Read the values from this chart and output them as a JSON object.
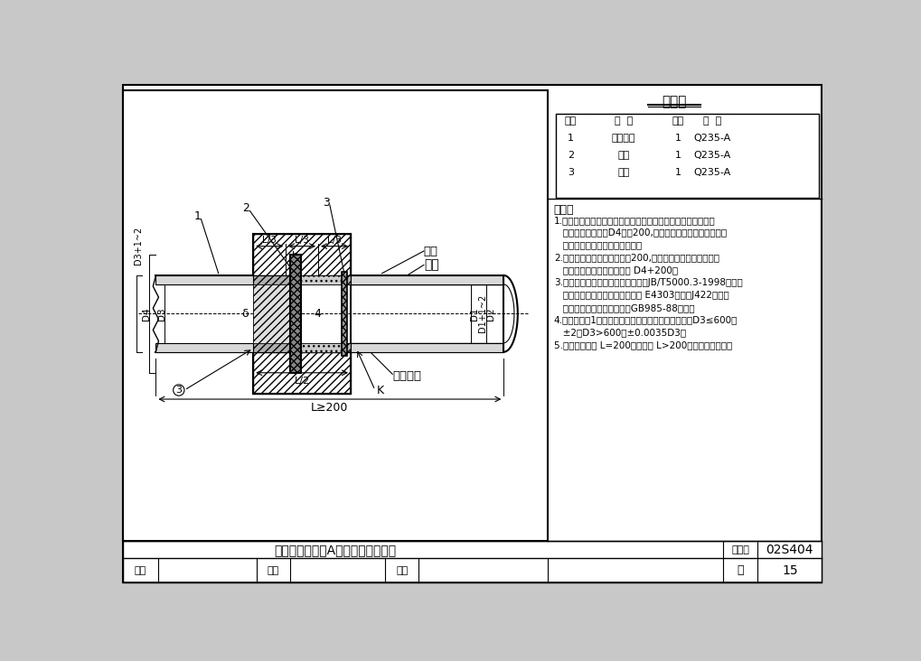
{
  "title_table": "材料表",
  "table_headers": [
    "序号",
    "名  称",
    "数量",
    "材  料"
  ],
  "table_rows": [
    [
      "1",
      "钢制套管",
      "1",
      "Q235-A"
    ],
    [
      "2",
      "翼环",
      "1",
      "Q235-A"
    ],
    [
      "3",
      "挡圈",
      "1",
      "Q235-A"
    ]
  ],
  "notes_title": "说明：",
  "notes": [
    "1.套管穿墙处如遇非混凝土墙壁时，应改用混凝土墙壁，其浇注",
    "   围应比翼环直径（D4）大200,而且必须将套管一次浇固于墙",
    "   内。套管内的填料应紧密捣实。",
    "2.穿管处混凝土墙厚应不小于200,否则应使墙壁一边或两边加",
    "   厚。加厚部分的直径至少为 D4+200。",
    "3.焊接结构尺寸公差与形位公差按照JB/T5000.3-1998执行。",
    "   焊接采用手工电弧焊，焊条型号 E4303，牌号J422。焊缝",
    "   坡口的基本形式与尺寸按照GB985-88执行。",
    "4.当套管（件1）采用卷制成型时，周长允许偏差为：D3≤600，",
    "   ±2，D3>600，±0.0035D3。",
    "5.套管的重量以 L=200计算，当 L>200时，应另行计算。"
  ],
  "bottom_title": "刚性防水套管（A型）安装图（一）",
  "atlas_label": "图集号",
  "atlas_num": "02S404",
  "page_label": "页",
  "page_num": "15",
  "label_youma": "油麻",
  "label_gangguan": "钢管",
  "label_shimianzhuini": "石棉水泥",
  "dim_b": "b",
  "dim_L3": "L/3",
  "dim_L2": "L/2",
  "dim_Lge200": "L≥200",
  "dim_D4": "D4",
  "dim_D3": "D3",
  "dim_D3p": "D3+1~2",
  "dim_D1": "D1",
  "dim_D1p": "D1+1~2",
  "dim_D2": "D2",
  "dim_delta": "δ",
  "label_4": "4",
  "label_K": "K",
  "lbl1": "1",
  "lbl2": "2",
  "lbl3": "3"
}
